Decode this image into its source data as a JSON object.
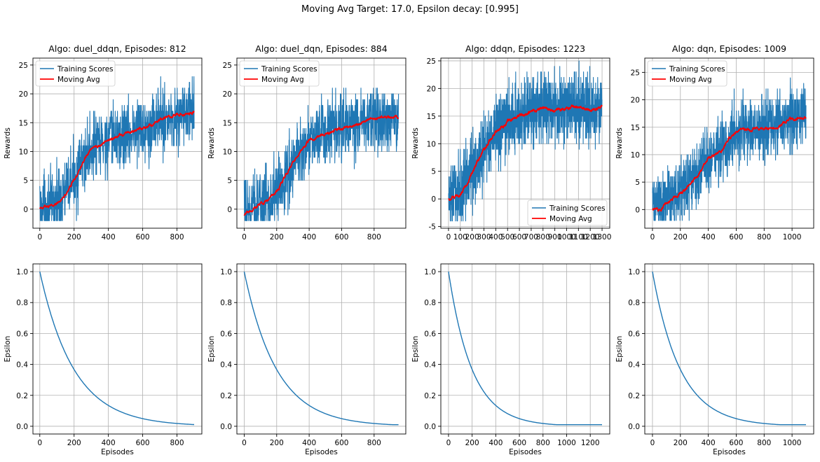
{
  "figure": {
    "suptitle": "Moving Avg Target: 17.0, Epsilon decay: [0.995]",
    "colors": {
      "training": "#1f77b4",
      "moving_avg": "#ff0000",
      "epsilon": "#1f77b4",
      "grid": "#b0b0b0"
    }
  },
  "legend_labels": {
    "training": "Training Scores",
    "moving_avg": "Moving Avg"
  },
  "chart_data": [
    {
      "type": "line",
      "row": 0,
      "col": 0,
      "title": "Algo: duel_ddqn, Episodes: 812",
      "xlabel": "",
      "ylabel": "Rewards",
      "xlim": [
        -40,
        945
      ],
      "ylim": [
        -3.3,
        26.2
      ],
      "xticks": [
        0,
        200,
        400,
        600,
        800
      ],
      "yticks": [
        0,
        5,
        10,
        15,
        20,
        25
      ],
      "grid": true,
      "legend": "upper-left",
      "series": [
        {
          "name": "Training Scores",
          "x_max": 900,
          "noise": 3.2,
          "min": -2,
          "max": 25,
          "knots": [
            [
              0,
              0.5
            ],
            [
              50,
              0.5
            ],
            [
              100,
              1.5
            ],
            [
              150,
              3
            ],
            [
              200,
              5.5
            ],
            [
              250,
              8
            ],
            [
              300,
              10.5
            ],
            [
              350,
              11.2
            ],
            [
              400,
              12
            ],
            [
              450,
              12.5
            ],
            [
              500,
              13
            ],
            [
              600,
              14
            ],
            [
              700,
              15.5
            ],
            [
              800,
              16
            ],
            [
              900,
              17
            ]
          ]
        },
        {
          "name": "Moving Avg",
          "x_max": 900,
          "knots": [
            [
              0,
              0.2
            ],
            [
              50,
              0.3
            ],
            [
              100,
              1
            ],
            [
              150,
              2.5
            ],
            [
              200,
              5
            ],
            [
              250,
              8
            ],
            [
              300,
              10.5
            ],
            [
              350,
              11
            ],
            [
              400,
              12
            ],
            [
              450,
              12.5
            ],
            [
              500,
              13
            ],
            [
              600,
              14
            ],
            [
              700,
              15.5
            ],
            [
              800,
              16.5
            ],
            [
              900,
              16.8
            ]
          ]
        }
      ]
    },
    {
      "type": "line",
      "row": 0,
      "col": 1,
      "title": "Algo: duel_dqn, Episodes: 884",
      "xlabel": "",
      "ylabel": "Rewards",
      "xlim": [
        -45,
        995
      ],
      "ylim": [
        -3.3,
        26.2
      ],
      "xticks": [
        0,
        200,
        400,
        600,
        800
      ],
      "yticks": [
        0,
        5,
        10,
        15,
        20,
        25
      ],
      "grid": true,
      "legend": "upper-left",
      "series": [
        {
          "name": "Training Scores",
          "x_max": 950,
          "noise": 3.2,
          "min": -2,
          "max": 25,
          "knots": [
            [
              0,
              -0.5
            ],
            [
              100,
              1
            ],
            [
              200,
              3
            ],
            [
              250,
              5.5
            ],
            [
              300,
              8
            ],
            [
              350,
              10
            ],
            [
              400,
              12
            ],
            [
              450,
              12.5
            ],
            [
              500,
              13
            ],
            [
              600,
              14
            ],
            [
              700,
              14.5
            ],
            [
              800,
              15.5
            ],
            [
              950,
              16
            ]
          ]
        },
        {
          "name": "Moving Avg",
          "x_max": 950,
          "knots": [
            [
              0,
              -1
            ],
            [
              50,
              0
            ],
            [
              100,
              0.8
            ],
            [
              150,
              1.5
            ],
            [
              200,
              3
            ],
            [
              250,
              5.5
            ],
            [
              300,
              8
            ],
            [
              350,
              10
            ],
            [
              400,
              12
            ],
            [
              450,
              12.5
            ],
            [
              500,
              13
            ],
            [
              600,
              14
            ],
            [
              700,
              14.8
            ],
            [
              800,
              15.8
            ],
            [
              950,
              16
            ]
          ]
        }
      ]
    },
    {
      "type": "line",
      "row": 0,
      "col": 2,
      "title": "Algo: ddqn, Episodes: 1223",
      "xlabel": "",
      "ylabel": "Rewards",
      "xlim": [
        -65,
        1365
      ],
      "ylim": [
        -5.3,
        25.5
      ],
      "xticks": [
        0,
        100,
        200,
        300,
        400,
        500,
        600,
        700,
        800,
        900,
        1000,
        1100,
        1200,
        1300
      ],
      "yticks": [
        -5,
        0,
        5,
        10,
        15,
        20,
        25
      ],
      "grid": true,
      "legend": "lower-right",
      "series": [
        {
          "name": "Training Scores",
          "x_max": 1300,
          "noise": 3.5,
          "min": -4,
          "max": 25,
          "knots": [
            [
              0,
              0.5
            ],
            [
              100,
              1.5
            ],
            [
              200,
              5
            ],
            [
              300,
              9
            ],
            [
              400,
              12
            ],
            [
              500,
              14
            ],
            [
              600,
              15
            ],
            [
              700,
              16
            ],
            [
              800,
              16.5
            ],
            [
              900,
              16
            ],
            [
              1000,
              16.5
            ],
            [
              1100,
              16.5
            ],
            [
              1200,
              16
            ],
            [
              1300,
              16.5
            ]
          ]
        },
        {
          "name": "Moving Avg",
          "x_max": 1300,
          "knots": [
            [
              0,
              0
            ],
            [
              50,
              0.2
            ],
            [
              100,
              0.8
            ],
            [
              150,
              2.5
            ],
            [
              200,
              5
            ],
            [
              250,
              7
            ],
            [
              300,
              9
            ],
            [
              400,
              12
            ],
            [
              500,
              14
            ],
            [
              600,
              15
            ],
            [
              700,
              15.8
            ],
            [
              800,
              16.5
            ],
            [
              900,
              16
            ],
            [
              1000,
              16.5
            ],
            [
              1100,
              16.8
            ],
            [
              1200,
              16
            ],
            [
              1300,
              16.7
            ]
          ]
        }
      ]
    },
    {
      "type": "line",
      "row": 0,
      "col": 3,
      "title": "Algo: dqn, Episodes: 1009",
      "xlabel": "",
      "ylabel": "Rewards",
      "xlim": [
        -55,
        1155
      ],
      "ylim": [
        -3.4,
        27.6
      ],
      "xticks": [
        0,
        200,
        400,
        600,
        800,
        1000
      ],
      "yticks": [
        0,
        5,
        10,
        15,
        20,
        25
      ],
      "grid": true,
      "legend": "upper-left",
      "series": [
        {
          "name": "Training Scores",
          "x_max": 1100,
          "noise": 3.2,
          "min": -2,
          "max": 26,
          "knots": [
            [
              0,
              0.5
            ],
            [
              100,
              1.5
            ],
            [
              200,
              3
            ],
            [
              300,
              5.5
            ],
            [
              350,
              7
            ],
            [
              400,
              9.5
            ],
            [
              450,
              10.5
            ],
            [
              500,
              11
            ],
            [
              550,
              13
            ],
            [
              600,
              14
            ],
            [
              700,
              14.5
            ],
            [
              800,
              15
            ],
            [
              900,
              15.5
            ],
            [
              1000,
              16.5
            ],
            [
              1100,
              17
            ]
          ]
        },
        {
          "name": "Moving Avg",
          "x_max": 1100,
          "knots": [
            [
              0,
              0.3
            ],
            [
              50,
              0
            ],
            [
              100,
              1
            ],
            [
              150,
              2
            ],
            [
              200,
              3
            ],
            [
              250,
              4
            ],
            [
              300,
              5.5
            ],
            [
              350,
              7
            ],
            [
              400,
              9.5
            ],
            [
              450,
              10
            ],
            [
              500,
              11
            ],
            [
              550,
              13
            ],
            [
              600,
              14
            ],
            [
              650,
              14.5
            ],
            [
              700,
              14.5
            ],
            [
              800,
              15
            ],
            [
              900,
              15
            ],
            [
              950,
              16
            ],
            [
              1000,
              16.5
            ],
            [
              1100,
              16.8
            ]
          ]
        }
      ]
    },
    {
      "type": "line",
      "row": 1,
      "col": 0,
      "title": "",
      "xlabel": "Episodes",
      "ylabel": "Epsilon",
      "xlim": [
        -40,
        945
      ],
      "ylim": [
        -0.05,
        1.05
      ],
      "xticks": [
        0,
        200,
        400,
        600,
        800
      ],
      "yticks": [
        0.0,
        0.2,
        0.4,
        0.6,
        0.8,
        1.0
      ],
      "grid": true,
      "series": [
        {
          "name": "Epsilon",
          "decay": 0.995,
          "floor": 0.01,
          "x_max": 900
        }
      ]
    },
    {
      "type": "line",
      "row": 1,
      "col": 1,
      "title": "",
      "xlabel": "Episodes",
      "ylabel": "Epsilon",
      "xlim": [
        -45,
        995
      ],
      "ylim": [
        -0.05,
        1.05
      ],
      "xticks": [
        0,
        200,
        400,
        600,
        800
      ],
      "yticks": [
        0.0,
        0.2,
        0.4,
        0.6,
        0.8,
        1.0
      ],
      "grid": true,
      "series": [
        {
          "name": "Epsilon",
          "decay": 0.995,
          "floor": 0.01,
          "x_max": 950
        }
      ]
    },
    {
      "type": "line",
      "row": 1,
      "col": 2,
      "title": "",
      "xlabel": "Episodes",
      "ylabel": "Epsilon",
      "xlim": [
        -65,
        1365
      ],
      "ylim": [
        -0.05,
        1.05
      ],
      "xticks": [
        0,
        200,
        400,
        600,
        800,
        1000,
        1200
      ],
      "yticks": [
        0.0,
        0.2,
        0.4,
        0.6,
        0.8,
        1.0
      ],
      "grid": true,
      "series": [
        {
          "name": "Epsilon",
          "decay": 0.995,
          "floor": 0.01,
          "x_max": 1300
        }
      ]
    },
    {
      "type": "line",
      "row": 1,
      "col": 3,
      "title": "",
      "xlabel": "Episodes",
      "ylabel": "Epsilon",
      "xlim": [
        -55,
        1155
      ],
      "ylim": [
        -0.05,
        1.05
      ],
      "xticks": [
        0,
        200,
        400,
        600,
        800,
        1000
      ],
      "yticks": [
        0.0,
        0.2,
        0.4,
        0.6,
        0.8,
        1.0
      ],
      "grid": true,
      "series": [
        {
          "name": "Epsilon",
          "decay": 0.995,
          "floor": 0.01,
          "x_max": 1100
        }
      ]
    }
  ]
}
